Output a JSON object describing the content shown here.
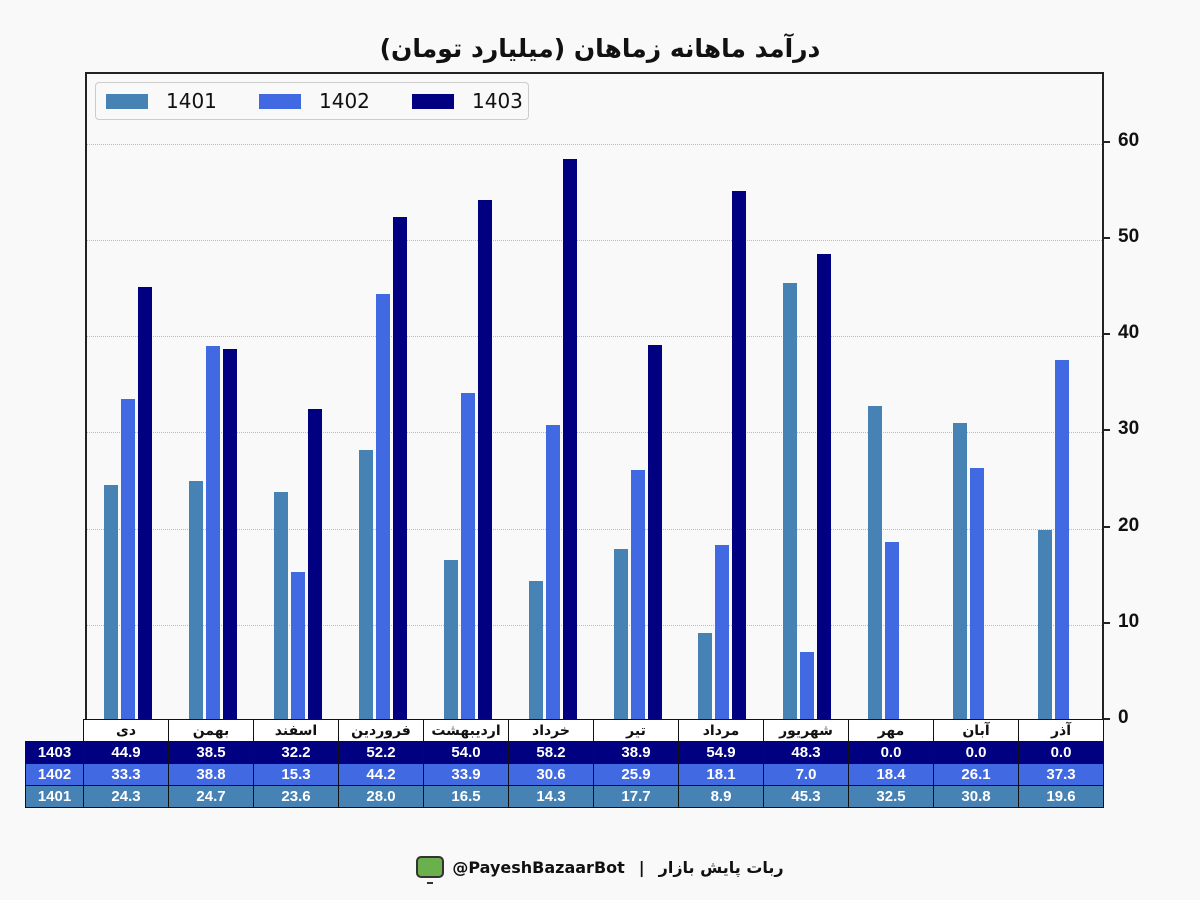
{
  "title": "درآمد ماهانه زماهان (میلیارد تومان)",
  "colors": {
    "1401": "#4682b4",
    "1402": "#4169e1",
    "1403": "#000080"
  },
  "legend": [
    {
      "label": "1401",
      "color": "#4682b4"
    },
    {
      "label": "1402",
      "color": "#4169e1"
    },
    {
      "label": "1403",
      "color": "#000080"
    }
  ],
  "yaxis": {
    "ticks": [
      "0",
      "10",
      "20",
      "30",
      "40",
      "50",
      "60"
    ],
    "position": "right"
  },
  "table": {
    "months": [
      "دی",
      "بهمن",
      "اسفند",
      "فروردین",
      "اردیبهشت",
      "خرداد",
      "تیر",
      "مرداد",
      "شهریور",
      "مهر",
      "آبان",
      "آذر"
    ],
    "rows": [
      {
        "label": "1403",
        "values": [
          "44.9",
          "38.5",
          "32.2",
          "52.2",
          "54.0",
          "58.2",
          "38.9",
          "54.9",
          "48.3",
          "0.0",
          "0.0",
          "0.0"
        ]
      },
      {
        "label": "1402",
        "values": [
          "33.3",
          "38.8",
          "15.3",
          "44.2",
          "33.9",
          "30.6",
          "25.9",
          "18.1",
          "7.0",
          "18.4",
          "26.1",
          "37.3"
        ]
      },
      {
        "label": "1401",
        "values": [
          "24.3",
          "24.7",
          "23.6",
          "28.0",
          "16.5",
          "14.3",
          "17.7",
          "8.9",
          "45.3",
          "32.5",
          "30.8",
          "19.6"
        ]
      }
    ]
  },
  "footer": {
    "handle": "@PayeshBazaarBot",
    "separator": "|",
    "bot_name": "ربات پایش بازار"
  },
  "chart_data": {
    "type": "bar",
    "title": "درآمد ماهانه زماهان (میلیارد تومان)",
    "xlabel": "",
    "ylabel": "",
    "ylim": [
      0,
      67
    ],
    "grid": true,
    "legend_position": "upper left",
    "categories": [
      "دی",
      "بهمن",
      "اسفند",
      "فروردین",
      "اردیبهشت",
      "خرداد",
      "تیر",
      "مرداد",
      "شهریور",
      "مهر",
      "آبان",
      "آذر"
    ],
    "series": [
      {
        "name": "1401",
        "color": "#4682b4",
        "values": [
          24.3,
          24.7,
          23.6,
          28.0,
          16.5,
          14.3,
          17.7,
          8.9,
          45.3,
          32.5,
          30.8,
          19.6
        ]
      },
      {
        "name": "1402",
        "color": "#4169e1",
        "values": [
          33.3,
          38.8,
          15.3,
          44.2,
          33.9,
          30.6,
          25.9,
          18.1,
          7.0,
          18.4,
          26.1,
          37.3
        ]
      },
      {
        "name": "1403",
        "color": "#000080",
        "values": [
          44.9,
          38.5,
          32.2,
          52.2,
          54.0,
          58.2,
          38.9,
          54.9,
          48.3,
          0.0,
          0.0,
          0.0
        ]
      }
    ]
  }
}
